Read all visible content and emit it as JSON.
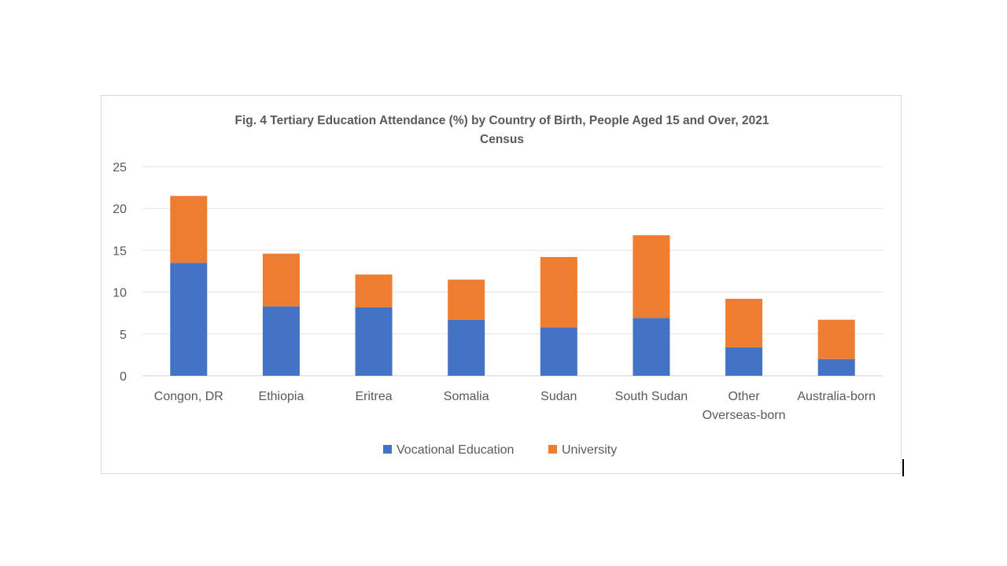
{
  "chart_data": {
    "type": "bar",
    "stacked": true,
    "title_lines": [
      "Fig. 4 Tertiary Education Attendance  (%) by Country of Birth, People Aged 15 and Over, 2021",
      "Census"
    ],
    "categories": [
      [
        "Congon, DR"
      ],
      [
        "Ethiopia"
      ],
      [
        "Eritrea"
      ],
      [
        "Somalia"
      ],
      [
        "Sudan"
      ],
      [
        "South Sudan"
      ],
      [
        "Other",
        "Overseas-born"
      ],
      [
        "Australia-born"
      ]
    ],
    "series": [
      {
        "name": "Vocational Education",
        "color": "#4472c4",
        "values": [
          13.5,
          8.3,
          8.2,
          6.7,
          5.8,
          6.9,
          3.4,
          2.0
        ]
      },
      {
        "name": "University",
        "color": "#ed7d31",
        "values": [
          8.0,
          6.3,
          3.9,
          4.8,
          8.4,
          9.9,
          5.8,
          4.7
        ]
      }
    ],
    "xlabel": "",
    "ylabel": "",
    "ylim": [
      0,
      25
    ],
    "yticks": [
      0,
      5,
      10,
      15,
      20,
      25
    ],
    "grid": true,
    "legend_position": "bottom"
  }
}
